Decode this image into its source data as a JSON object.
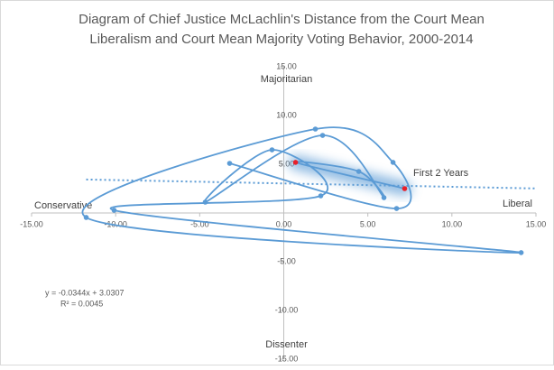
{
  "chart_data": {
    "type": "scatter",
    "title": [
      "Diagram of Chief Justice McLachlin's Distance from the Court Mean",
      "Liberalism and Court Mean Majority Voting Behavior, 2000-2014"
    ],
    "series": [
      {
        "color": "#5b9bd5",
        "highlight_color": "#e8202a",
        "x": [
          7.19,
          0.7,
          4.46,
          5.96,
          2.31,
          -4.67,
          -0.7,
          2.2,
          -10.09,
          14.12,
          -11.75,
          1.88,
          6.5,
          6.71,
          -3.22
        ],
        "values": [
          2.5,
          5.19,
          4.26,
          1.57,
          7.96,
          1.11,
          6.48,
          1.76,
          0.28,
          -4.07,
          -0.46,
          8.61,
          5.19,
          0.46,
          5.09
        ]
      }
    ],
    "xlim": [
      -15,
      15
    ],
    "ylim": [
      -15,
      15
    ],
    "xticks": [
      {
        "value": -15,
        "label": "-15.00"
      },
      {
        "value": -10,
        "label": "-10.00"
      },
      {
        "value": -5,
        "label": "-5.00"
      },
      {
        "value": 0,
        "label": "0.00"
      },
      {
        "value": 5,
        "label": "5.00"
      },
      {
        "value": 10,
        "label": "10.00"
      },
      {
        "value": 15,
        "label": "15.00"
      }
    ],
    "yticks": [
      {
        "value": -15,
        "label": "-15.00"
      },
      {
        "value": -10,
        "label": "-10.00"
      },
      {
        "value": -5,
        "label": "-5.00"
      },
      {
        "value": 5,
        "label": "5.00"
      },
      {
        "value": 10,
        "label": "10.00"
      },
      {
        "value": 15,
        "label": "15.00"
      }
    ],
    "trendline": {
      "slope": -0.0344,
      "intercept": 3.0307,
      "equation": "y = -0.0344x + 3.0307",
      "r_squared": "R² = 0.0045"
    },
    "annotations": {
      "top": "Majoritarian",
      "bottom": "Dissenter",
      "left": "Conservative",
      "right": "Liberal",
      "highlight": "First 2 Years"
    }
  }
}
